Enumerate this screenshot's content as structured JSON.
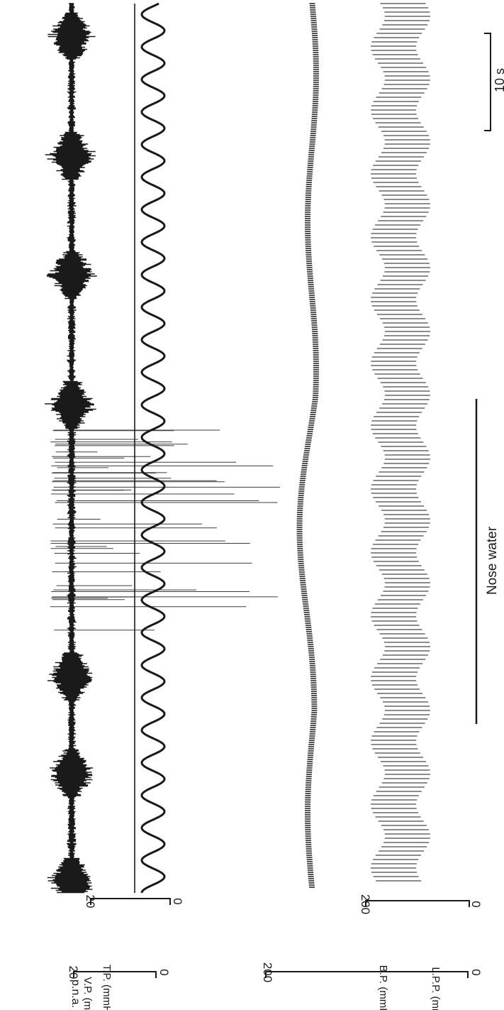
{
  "colors": {
    "ink": "#1a1a1a",
    "background": "#ffffff"
  },
  "chart_data": {
    "type": "line",
    "orientation": "rotated-90-clockwise",
    "title": "",
    "time_scale": {
      "label": "10 s"
    },
    "stimulus": {
      "label": "Nose water"
    },
    "traces": [
      {
        "name": "p.n.a.",
        "label": "p.n.a."
      },
      {
        "name": "T.P.",
        "label": "T.P. (mmHg)",
        "scale": {
          "min": 0,
          "max": 20,
          "tick_labels": [
            "20",
            "0"
          ]
        }
      },
      {
        "name": "V.P.",
        "label": "V.P. (mmHg)",
        "scale": {
          "min": 0,
          "max": 20,
          "tick_labels": [
            "20",
            "0"
          ]
        }
      },
      {
        "name": "B.P.",
        "label": "B.P. (mmHg)",
        "scale": {
          "min": 0,
          "max": 200,
          "tick_labels": [
            "200",
            "0"
          ]
        }
      },
      {
        "name": "L.P.P.",
        "label": "L.P.P. (mmHg)",
        "scale": {
          "min": 0,
          "max": 200,
          "tick_labels": [
            "200",
            "0"
          ]
        }
      }
    ],
    "pna_bursts_s": [
      1,
      11,
      20,
      45,
      57,
      68,
      79
    ],
    "breathing_period_s": 3.0,
    "recording_duration_s": 82
  }
}
